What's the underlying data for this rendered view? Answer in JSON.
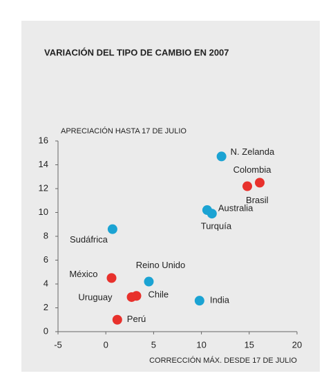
{
  "chart_data": {
    "type": "scatter",
    "title": "VARIACIÓN DEL TIPO DE CAMBIO EN 2007",
    "y_label": "APRECIACIÓN HASTA 17 DE JULIO",
    "x_label": "CORRECCIÓN MÁX. DESDE 17 DE JULIO",
    "labels": [
      "N. Zelanda",
      "Colombia",
      "Brasil",
      "Australia",
      "Turquía",
      "Sudáfrica",
      "México",
      "Reino Unido",
      "Chile",
      "Uruguay",
      "India",
      "Perú"
    ],
    "x": [
      12.1,
      16.1,
      14.8,
      11.1,
      10.6,
      0.7,
      0.6,
      4.5,
      3.2,
      2.7,
      9.8,
      1.2
    ],
    "y": [
      14.7,
      12.5,
      12.2,
      9.9,
      10.2,
      8.6,
      4.5,
      4.2,
      3.0,
      2.9,
      2.6,
      1.0
    ],
    "colors": [
      "#1ba3d3",
      "#e8312c",
      "#e8312c",
      "#1ba3d3",
      "#1ba3d3",
      "#1ba3d3",
      "#e8312c",
      "#1ba3d3",
      "#e8312c",
      "#e8312c",
      "#1ba3d3",
      "#e8312c"
    ],
    "xlim": [
      -5,
      20
    ],
    "xticks": [
      -5,
      0,
      5,
      10,
      15,
      20
    ],
    "ylim": [
      0,
      16
    ],
    "yticks": [
      0,
      2,
      4,
      6,
      8,
      10,
      12,
      14,
      16
    ]
  }
}
